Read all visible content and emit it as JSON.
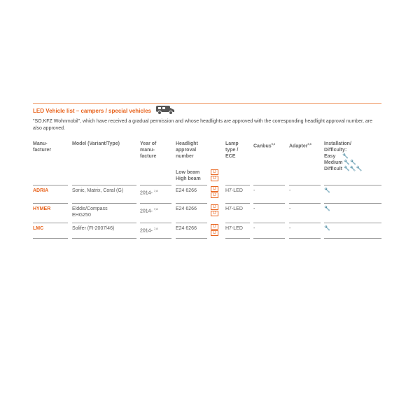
{
  "title": "LED Vehicle list – campers / special vehicles",
  "description": "\"SO.KFZ Wohnmobil\", which have received a gradual permission and whose headlights are approved with the corresponding headlight approval number, are also approved.",
  "headers": {
    "manufacturer": "Manu-\nfacturer",
    "model": "Model (Variant/Type)",
    "year": "Year of\nmanu-\nfacture",
    "approval": "Headlight\napproval\nnumber",
    "beams": "Low beam\nHigh beam",
    "lamp": "Lamp\ntype /\nECE",
    "canbus": "Canbus",
    "canbus_sup": "5,6",
    "adapter": "Adapter",
    "adapter_sup": "5,6",
    "install": "Installation/\nDifficulty:",
    "easy": "Easy",
    "medium": "Medium",
    "difficult": "Difficult"
  },
  "rows": [
    {
      "manufacturer": "ADRIA",
      "model": "Sonic, Matrix, Coral (G)",
      "year": "2014-",
      "year_sup": "7,8",
      "approval": "E24 6266",
      "lamp": "H7-LED",
      "canbus": "-",
      "adapter": "-",
      "difficulty": 1
    },
    {
      "manufacturer": "HYMER",
      "model": "Elddis/Compass\nEHG250",
      "year": "2014-",
      "year_sup": "7,8",
      "approval": "E24 6266",
      "lamp": "H7-LED",
      "canbus": "-",
      "adapter": "-",
      "difficulty": 1
    },
    {
      "manufacturer": "LMC",
      "model": "Solifer (FI-2007/46)",
      "year": "2014-",
      "year_sup": "7,8",
      "approval": "E24 6266",
      "lamp": "H7-LED",
      "canbus": "-",
      "adapter": "-",
      "difficulty": 1
    }
  ],
  "colors": {
    "accent": "#e8641e"
  },
  "icons": {
    "vehicle": "camper-van-icon",
    "beam": "headlight-beam-icon",
    "difficulty": "wrench-icon"
  }
}
